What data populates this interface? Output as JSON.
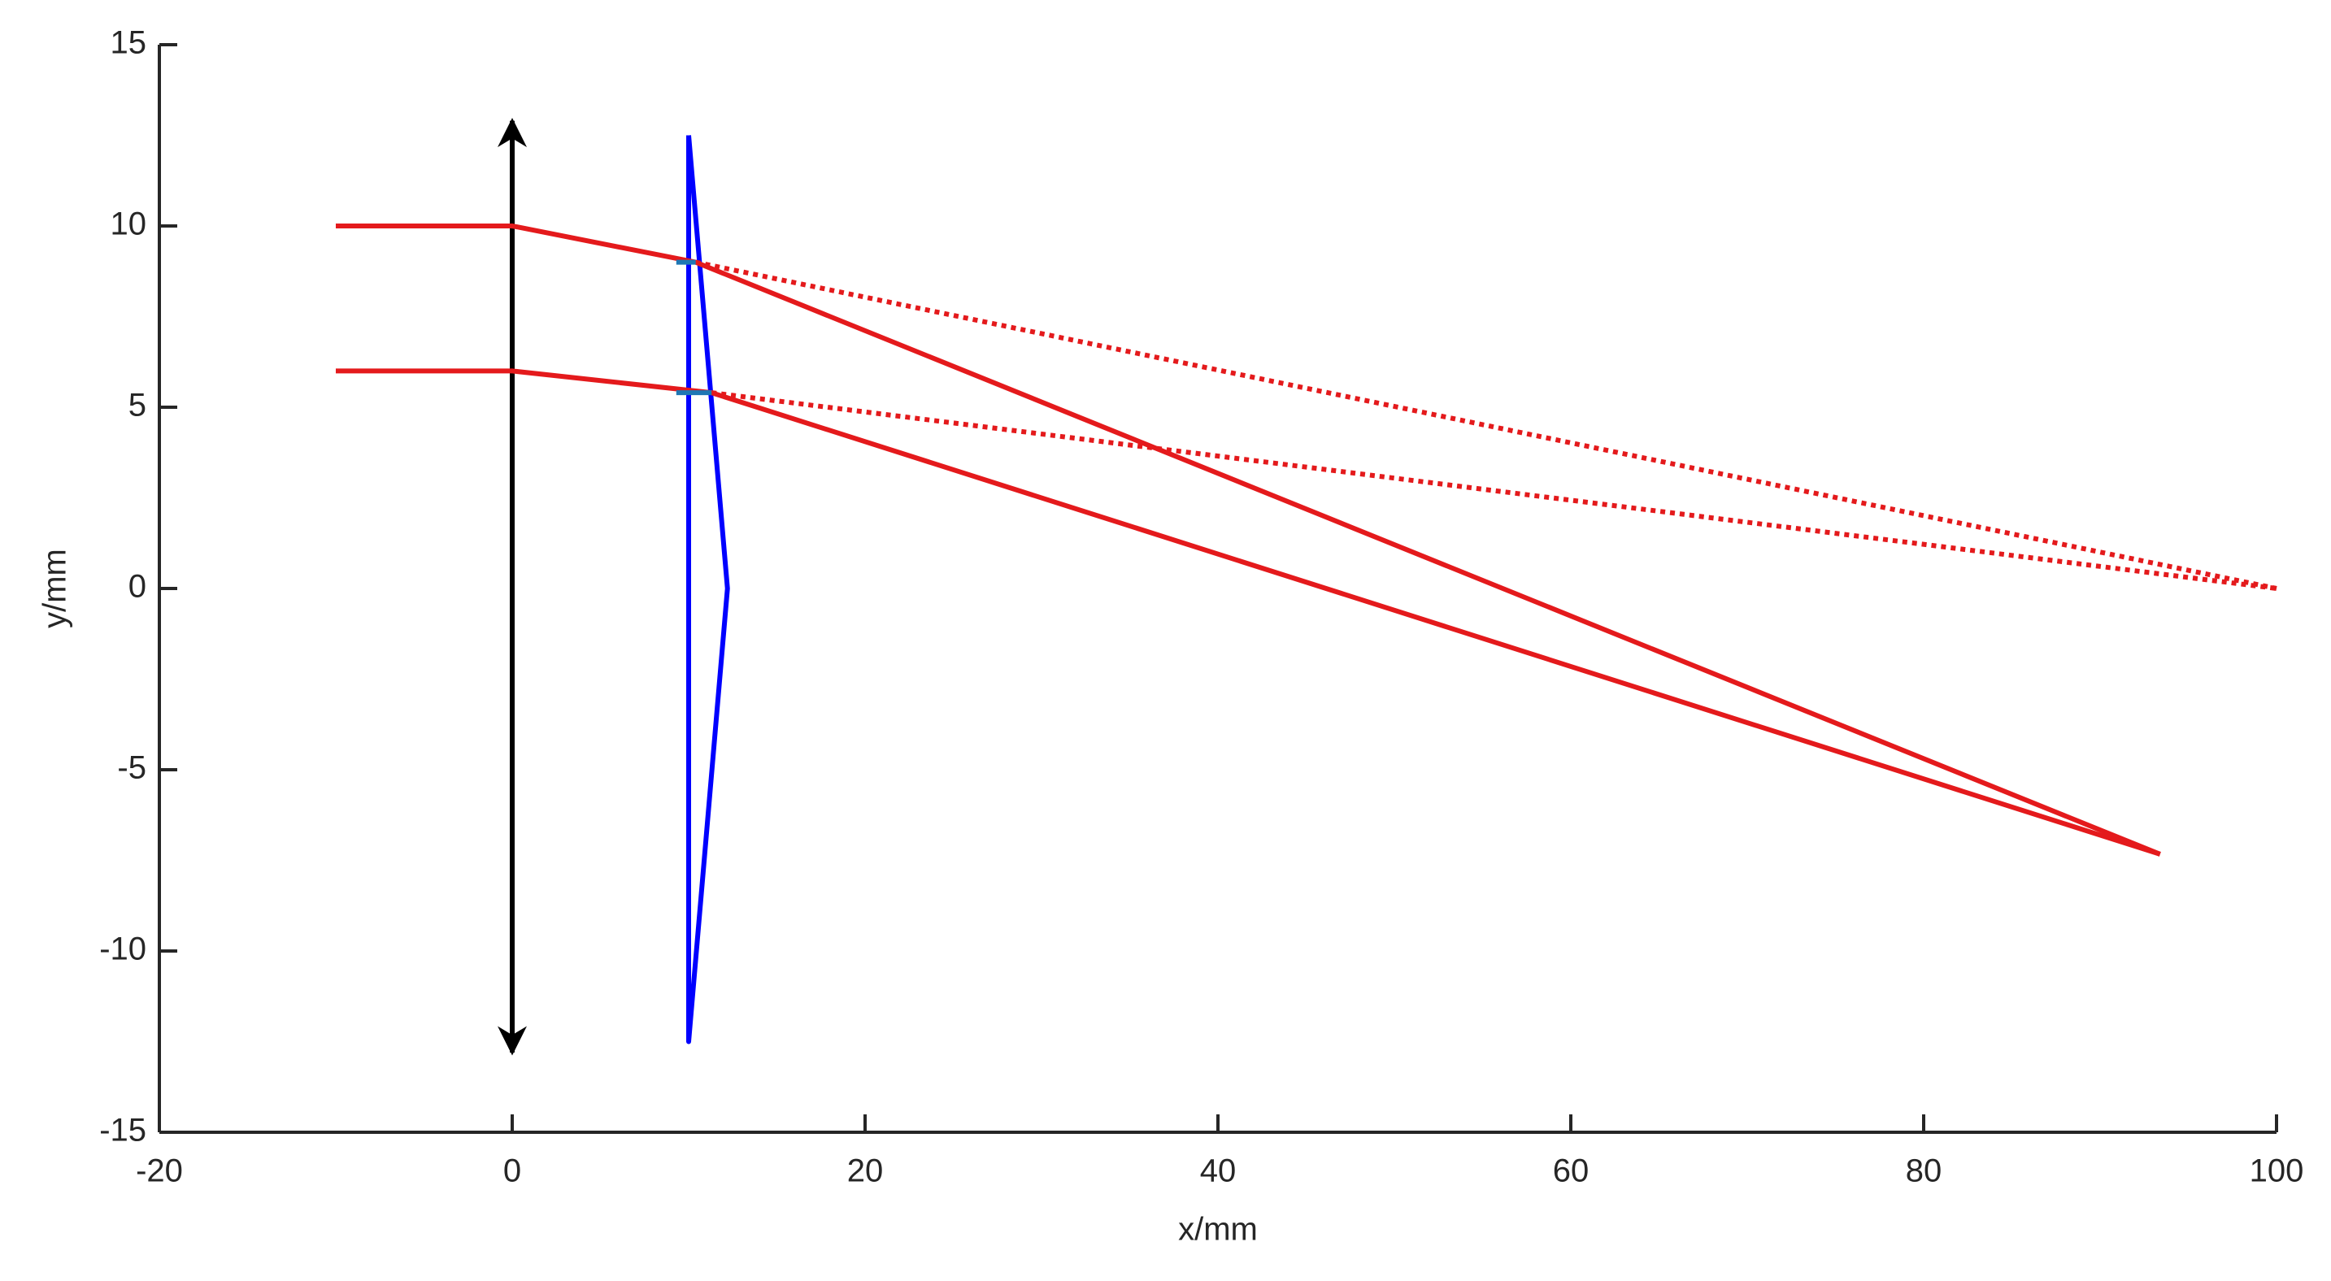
{
  "chart_data": {
    "type": "line",
    "xlabel": "x/mm",
    "ylabel": "y/mm",
    "xlim": [
      -20,
      100
    ],
    "ylim": [
      -15,
      15
    ],
    "xticks": [
      -20,
      0,
      20,
      40,
      60,
      80,
      100
    ],
    "yticks": [
      -15,
      -10,
      -5,
      0,
      5,
      10,
      15
    ],
    "grid": false,
    "series": [
      {
        "color": "#000000",
        "arrows": true,
        "x": [
          0,
          0
        ],
        "values": [
          12.9,
          -12.8
        ]
      },
      {
        "color": "#0000ff",
        "x": [
          10,
          10,
          12.2,
          10
        ],
        "values": [
          12.5,
          -12.5,
          0,
          12.5
        ]
      },
      {
        "color": "#e41a1c",
        "x": [
          -10,
          0,
          10.4,
          93.4
        ],
        "values": [
          10,
          10,
          9,
          -7.33
        ]
      },
      {
        "color": "#e41a1c",
        "x": [
          -10,
          0,
          11.3,
          93.4
        ],
        "values": [
          6,
          6,
          5.4,
          -7.33
        ]
      },
      {
        "color": "#e41a1c",
        "dashed": true,
        "x": [
          10.4,
          100
        ],
        "values": [
          9,
          0
        ]
      },
      {
        "color": "#e41a1c",
        "dashed": true,
        "x": [
          11.3,
          100
        ],
        "values": [
          5.4,
          0
        ]
      },
      {
        "color": "#1f77b4",
        "x": [
          9.3,
          10.4
        ],
        "values": [
          9,
          9
        ]
      },
      {
        "color": "#1f77b4",
        "x": [
          9.3,
          11.3
        ],
        "values": [
          5.4,
          5.4
        ]
      }
    ]
  }
}
